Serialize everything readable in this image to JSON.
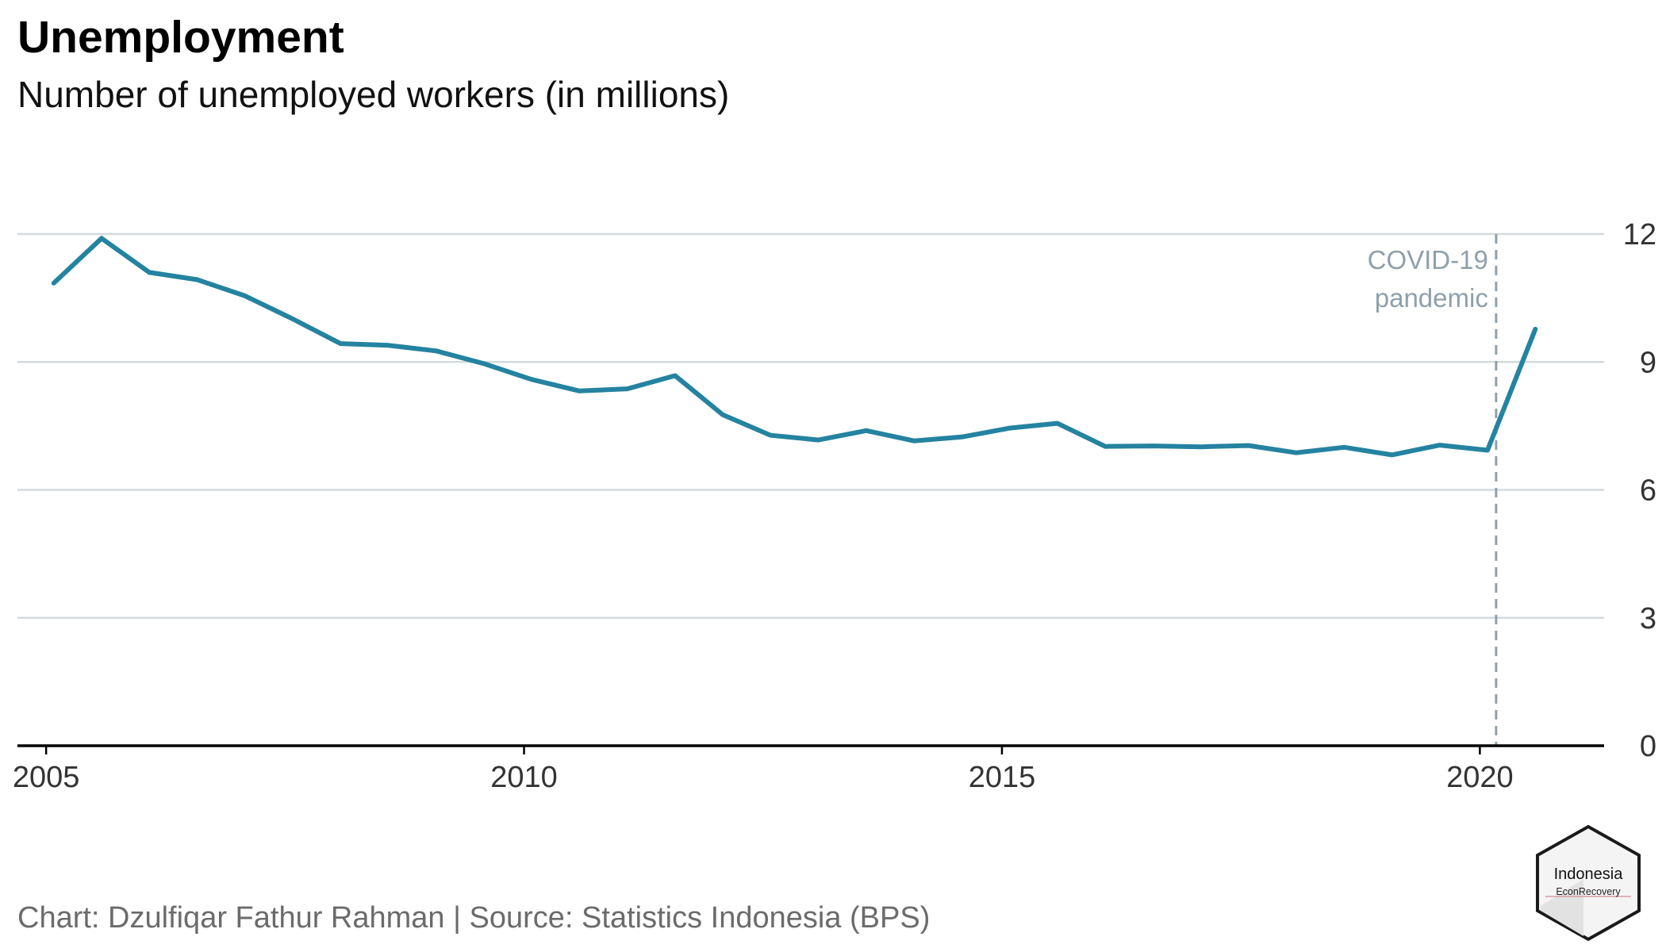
{
  "title": "Unemployment",
  "subtitle": "Number of unemployed workers (in millions)",
  "caption": "Chart: Dzulfiqar Fathur Rahman | Source: Statistics Indonesia (BPS)",
  "badge": {
    "line1": "Indonesia",
    "line2": "EconRecovery"
  },
  "colors": {
    "line": "#2483a0",
    "annotation": "#8fa0ab",
    "grid": "#d3dadd",
    "axis": "#000000"
  },
  "chart_data": {
    "type": "line",
    "title": "Unemployment",
    "subtitle": "Number of unemployed workers (in millions)",
    "xlabel": "",
    "ylabel": "",
    "xlim": [
      2004.7,
      2021.3
    ],
    "ylim": [
      0,
      12
    ],
    "x_ticks": [
      2005,
      2010,
      2015,
      2020
    ],
    "y_ticks": [
      0,
      3,
      6,
      9,
      12
    ],
    "y_axis_side": "right",
    "grid": "horizontal",
    "legend": "none",
    "series": [
      {
        "x": [
          2005.08,
          2005.58,
          2006.08,
          2006.58,
          2007.08,
          2007.58,
          2008.08,
          2008.58,
          2009.08,
          2009.58,
          2010.08,
          2010.58,
          2011.08,
          2011.58,
          2012.08,
          2012.58,
          2013.08,
          2013.58,
          2014.08,
          2014.58,
          2015.08,
          2015.58,
          2016.08,
          2016.58,
          2017.08,
          2017.58,
          2018.08,
          2018.58,
          2019.08,
          2019.58,
          2020.08,
          2020.58
        ],
        "values": [
          10.85,
          11.9,
          11.1,
          10.93,
          10.55,
          10.01,
          9.43,
          9.39,
          9.26,
          8.96,
          8.59,
          8.32,
          8.37,
          8.68,
          7.76,
          7.28,
          7.17,
          7.39,
          7.15,
          7.24,
          7.45,
          7.56,
          7.02,
          7.03,
          7.01,
          7.04,
          6.87,
          7.0,
          6.82,
          7.05,
          6.93,
          9.77
        ]
      }
    ],
    "annotations": [
      {
        "x": 2020.17,
        "line1": "COVID-19",
        "line2": "pandemic",
        "style": "dashed-vertical"
      }
    ]
  }
}
